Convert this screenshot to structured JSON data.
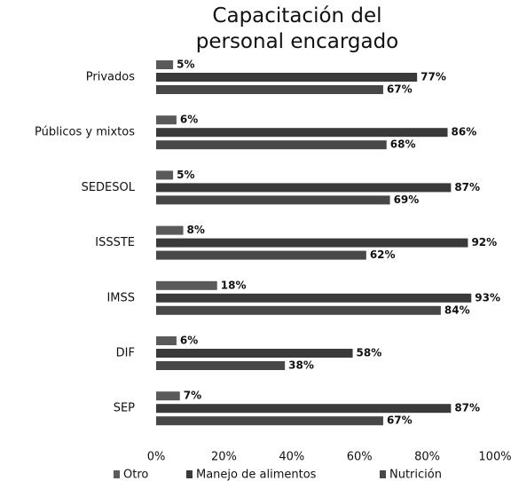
{
  "chart_data": {
    "type": "bar",
    "orientation": "horizontal",
    "title": "Capacitación del personal encargado",
    "categories": [
      "Privados",
      "Públicos y mixtos",
      "SEDESOL",
      "ISSSTE",
      "IMSS",
      "DIF",
      "SEP"
    ],
    "series": [
      {
        "name": "Otro",
        "color": "#5a5a5a",
        "values": [
          5,
          6,
          5,
          8,
          18,
          6,
          7
        ],
        "value_labels": [
          "5%",
          "6%",
          "5%",
          "8%",
          "18%",
          "6%",
          "7%"
        ]
      },
      {
        "name": "Manejo de alimentos",
        "color": "#3a3a3a",
        "values": [
          77,
          86,
          87,
          92,
          93,
          58,
          87
        ],
        "value_labels": [
          "77%",
          "86%",
          "87%",
          "92%",
          "93%",
          "58%",
          "87%"
        ]
      },
      {
        "name": "Nutrición",
        "color": "#484848",
        "values": [
          67,
          68,
          69,
          62,
          84,
          38,
          67
        ],
        "value_labels": [
          "67%",
          "68%",
          "69%",
          "62%",
          "84%",
          "38%",
          "67%"
        ]
      }
    ],
    "xlim": [
      0,
      100
    ],
    "xticks": [
      {
        "value": 0,
        "label": "0%"
      },
      {
        "value": 20,
        "label": "20%"
      },
      {
        "value": 40,
        "label": "40%"
      },
      {
        "value": 60,
        "label": "60%"
      },
      {
        "value": 80,
        "label": "80%"
      },
      {
        "value": 100,
        "label": "100%"
      }
    ],
    "grid": false,
    "legend": "bottom"
  }
}
